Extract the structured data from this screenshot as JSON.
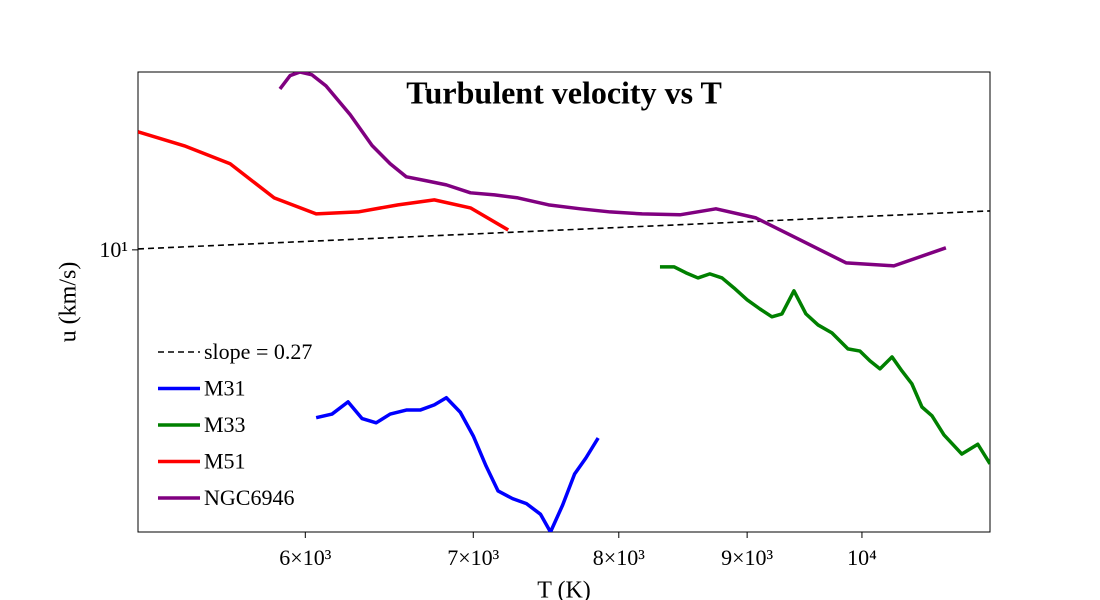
{
  "chart_data": {
    "type": "line",
    "title": "Turbulent velocity vs T",
    "x_label": "T (K)",
    "y_label": "u (km/s)",
    "x_log": true,
    "y_log": true,
    "legend": "lower left",
    "xlim": [
      5146,
      11247
    ],
    "ylim": [
      2.17,
      26.2
    ],
    "xticks": [
      {
        "value": 6000,
        "label": "6×10³"
      },
      {
        "value": 7000,
        "label": "7×10³"
      },
      {
        "value": 8000,
        "label": "8×10³"
      },
      {
        "value": 9000,
        "label": "9×10³"
      },
      {
        "value": 10000,
        "label": "10⁴"
      }
    ],
    "yticks": [
      {
        "value": 10,
        "label": "10¹"
      }
    ],
    "series": [
      {
        "name": "slope = 0.27",
        "color": "#000000",
        "linestyle": "--",
        "x": [
          5146,
          11247
        ],
        "values": [
          10.05,
          12.35
        ]
      },
      {
        "name": "M31",
        "color": "#0000ff",
        "linestyle": "-",
        "x": [
          6060,
          6149,
          6240,
          6321,
          6403,
          6486,
          6583,
          6667,
          6754,
          6829,
          6917,
          7000,
          7083,
          7161,
          7257,
          7350,
          7445,
          7514,
          7598,
          7682,
          7762,
          7850
        ],
        "values": [
          4.03,
          4.11,
          4.39,
          4.01,
          3.92,
          4.11,
          4.2,
          4.2,
          4.32,
          4.49,
          4.15,
          3.65,
          3.1,
          2.71,
          2.6,
          2.53,
          2.39,
          2.17,
          2.51,
          2.97,
          3.24,
          3.61
        ]
      },
      {
        "name": "M33",
        "color": "#008000",
        "linestyle": "-",
        "x": [
          8308,
          8416,
          8509,
          8603,
          8697,
          8795,
          8891,
          9000,
          9107,
          9207,
          9292,
          9395,
          9499,
          9605,
          9728,
          9872,
          9982,
          10074,
          10167,
          10280,
          10374,
          10469,
          10566,
          10664,
          10782,
          10960,
          11122,
          11247
        ],
        "values": [
          9.12,
          9.12,
          8.83,
          8.59,
          8.78,
          8.59,
          8.14,
          7.63,
          7.26,
          6.96,
          7.07,
          8.01,
          7.07,
          6.66,
          6.38,
          5.85,
          5.78,
          5.48,
          5.25,
          5.6,
          5.19,
          4.84,
          4.27,
          4.07,
          3.67,
          3.31,
          3.49,
          3.14
        ]
      },
      {
        "name": "M51",
        "color": "#ff0000",
        "linestyle": "-",
        "x": [
          5146,
          5369,
          5600,
          5831,
          6060,
          6298,
          6533,
          6754,
          6982,
          7228
        ],
        "values": [
          18.95,
          17.57,
          15.94,
          13.25,
          12.15,
          12.28,
          12.76,
          13.11,
          12.55,
          11.14
        ]
      },
      {
        "name": "NGC6946",
        "color": "#800080",
        "linestyle": "-",
        "x": [
          5862,
          5917,
          5971,
          6037,
          6115,
          6252,
          6379,
          6486,
          6583,
          6704,
          6829,
          6982,
          7138,
          7293,
          7500,
          7722,
          7937,
          8173,
          8462,
          8746,
          9073,
          9447,
          9855,
          10297,
          10801
        ],
        "values": [
          23.9,
          25.7,
          26.2,
          25.8,
          24.3,
          20.8,
          17.6,
          15.94,
          14.85,
          14.54,
          14.22,
          13.62,
          13.47,
          13.25,
          12.76,
          12.49,
          12.28,
          12.15,
          12.09,
          12.49,
          11.89,
          10.56,
          9.32,
          9.17,
          10.11
        ]
      }
    ]
  }
}
